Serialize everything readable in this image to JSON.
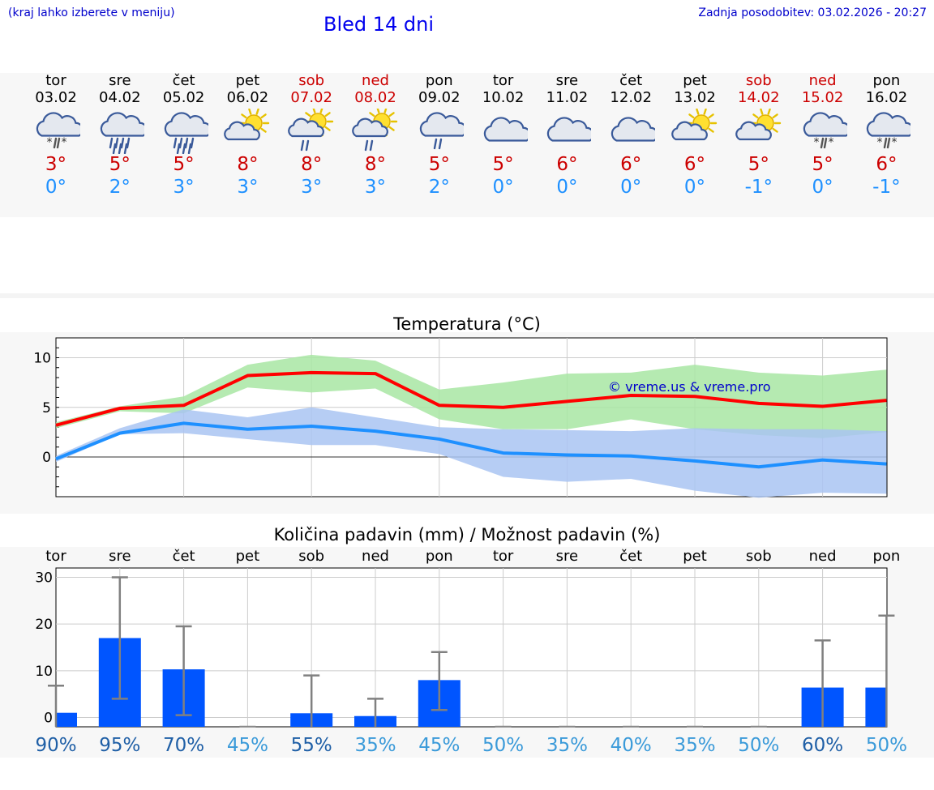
{
  "header": {
    "hint": "(kraj lahko izberete v meniju)",
    "title": "Bled 14 dni",
    "updated": "Zadnja posodobitev: 03.02.2026 - 20:27"
  },
  "days": [
    {
      "name": "tor",
      "date": "03.02",
      "weekend": false,
      "icon": "cloud-snow-icon",
      "max": "3°",
      "min": "0°"
    },
    {
      "name": "sre",
      "date": "04.02",
      "weekend": false,
      "icon": "cloud-rain-icon",
      "max": "5°",
      "min": "2°"
    },
    {
      "name": "čet",
      "date": "05.02",
      "weekend": false,
      "icon": "cloud-rain-icon",
      "max": "5°",
      "min": "3°"
    },
    {
      "name": "pet",
      "date": "06.02",
      "weekend": false,
      "icon": "sun-cloud-icon",
      "max": "8°",
      "min": "3°"
    },
    {
      "name": "sob",
      "date": "07.02",
      "weekend": true,
      "icon": "sun-cloud-rain-icon",
      "max": "8°",
      "min": "3°"
    },
    {
      "name": "ned",
      "date": "08.02",
      "weekend": true,
      "icon": "sun-cloud-rain-icon",
      "max": "8°",
      "min": "3°"
    },
    {
      "name": "pon",
      "date": "09.02",
      "weekend": false,
      "icon": "cloud-light-rain-icon",
      "max": "5°",
      "min": "2°"
    },
    {
      "name": "tor",
      "date": "10.02",
      "weekend": false,
      "icon": "cloud-icon",
      "max": "5°",
      "min": "0°"
    },
    {
      "name": "sre",
      "date": "11.02",
      "weekend": false,
      "icon": "cloud-icon",
      "max": "6°",
      "min": "0°"
    },
    {
      "name": "čet",
      "date": "12.02",
      "weekend": false,
      "icon": "cloud-icon",
      "max": "6°",
      "min": "0°"
    },
    {
      "name": "pet",
      "date": "13.02",
      "weekend": false,
      "icon": "sun-cloud-icon",
      "max": "6°",
      "min": "0°"
    },
    {
      "name": "sob",
      "date": "14.02",
      "weekend": true,
      "icon": "sun-cloud-icon",
      "max": "5°",
      "min": "-1°"
    },
    {
      "name": "ned",
      "date": "15.02",
      "weekend": true,
      "icon": "cloud-snow-icon",
      "max": "5°",
      "min": "0°"
    },
    {
      "name": "pon",
      "date": "16.02",
      "weekend": false,
      "icon": "cloud-snow-icon",
      "max": "6°",
      "min": "-1°"
    }
  ],
  "chart_data": [
    {
      "type": "line",
      "title": "Temperatura (°C)",
      "watermark": "© vreme.us & vreme.pro",
      "ylim": [
        -4,
        12
      ],
      "yticks": [
        0,
        5,
        10
      ],
      "x": [
        0,
        1,
        2,
        3,
        4,
        5,
        6,
        7,
        8,
        9,
        10,
        11,
        12,
        13
      ],
      "series": [
        {
          "name": "max",
          "color": "#ff0000",
          "values": [
            3.2,
            4.9,
            5.2,
            8.2,
            8.5,
            8.4,
            5.2,
            5.0,
            5.6,
            6.2,
            6.1,
            5.4,
            5.1,
            5.7
          ],
          "band_low": [
            2.9,
            4.6,
            4.4,
            7.0,
            6.5,
            6.9,
            3.8,
            2.8,
            2.8,
            3.8,
            2.8,
            2.2,
            1.9,
            2.5
          ],
          "band_high": [
            3.5,
            5.1,
            6.1,
            9.3,
            10.3,
            9.7,
            6.8,
            7.5,
            8.4,
            8.5,
            9.3,
            8.5,
            8.2,
            8.8
          ],
          "band_color": "#a8e6a3"
        },
        {
          "name": "min",
          "color": "#1e90ff",
          "values": [
            -0.2,
            2.4,
            3.4,
            2.8,
            3.1,
            2.6,
            1.8,
            0.4,
            0.2,
            0.1,
            -0.4,
            -1.0,
            -0.3,
            -0.7
          ],
          "band_low": [
            -0.5,
            2.3,
            2.4,
            1.8,
            1.2,
            1.2,
            0.3,
            -2.0,
            -2.5,
            -2.2,
            -3.4,
            -4.1,
            -3.6,
            -3.7
          ],
          "band_high": [
            0.1,
            2.9,
            4.8,
            4.0,
            5.0,
            4.0,
            3.0,
            2.8,
            2.7,
            2.6,
            2.9,
            2.8,
            2.8,
            2.6
          ],
          "band_color": "#a9c4f2"
        }
      ]
    },
    {
      "type": "bar",
      "title": "Količina padavin (mm) / Možnost padavin (%)",
      "ylim": [
        -2,
        32
      ],
      "yticks": [
        0,
        10,
        20,
        30
      ],
      "categories": [
        "tor",
        "sre",
        "čet",
        "pet",
        "sob",
        "ned",
        "pon",
        "tor",
        "sre",
        "čet",
        "pet",
        "sob",
        "ned",
        "pon"
      ],
      "values": [
        1.0,
        17.0,
        10.3,
        0,
        0.9,
        0.3,
        8.0,
        0,
        0,
        0,
        0,
        0,
        6.4,
        6.4
      ],
      "err_low": [
        0,
        4.0,
        0.5,
        0,
        0,
        0,
        1.6,
        0,
        0,
        0,
        0,
        0,
        0,
        0
      ],
      "err_high": [
        6.8,
        30.0,
        19.5,
        0,
        9.0,
        4.0,
        14.0,
        0,
        0,
        0,
        0,
        0,
        16.5,
        21.8
      ],
      "probability": [
        "90%",
        "95%",
        "70%",
        "45%",
        "55%",
        "35%",
        "45%",
        "50%",
        "35%",
        "40%",
        "35%",
        "50%",
        "60%",
        "50%"
      ],
      "bar_color": "#0055ff"
    }
  ]
}
